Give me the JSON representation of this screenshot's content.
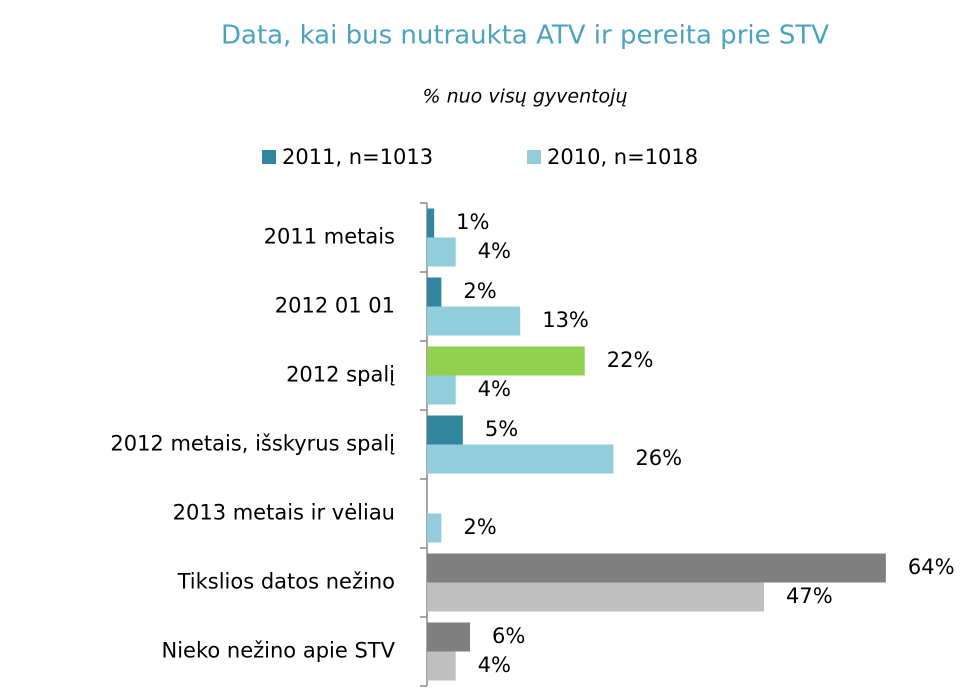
{
  "chart_data": {
    "type": "hbar",
    "title": "Data, kai bus nutraukta ATV ir pereita prie STV",
    "subtitle": "% nuo visų gyventojų",
    "categories": [
      "2011 metais",
      "2012 01 01",
      "2012 spalį",
      "2012 metais, išskyrus spalį",
      "2013 metais ir vėliau",
      "Tikslios datos nežino",
      "Nieko nežino apie STV"
    ],
    "series": [
      {
        "name": "2011, n=1013",
        "color": "#31859c",
        "colors": [
          "#31859c",
          "#31859c",
          "#92d050",
          "#31859c",
          "#31859c",
          "#7f7f7f",
          "#7f7f7f"
        ],
        "values": [
          1,
          2,
          22,
          5,
          null,
          64,
          6
        ],
        "value_labels": [
          "1%",
          "2%",
          "22%",
          "5%",
          null,
          "64%",
          "6%"
        ]
      },
      {
        "name": "2010, n=1018",
        "color": "#92cddc",
        "colors": [
          "#92cddc",
          "#92cddc",
          "#92cddc",
          "#92cddc",
          "#92cddc",
          "#bfbfbf",
          "#bfbfbf"
        ],
        "values": [
          4,
          13,
          4,
          26,
          2,
          47,
          4
        ],
        "value_labels": [
          "4%",
          "13%",
          "4%",
          "26%",
          "2%",
          "47%",
          "4%"
        ]
      }
    ]
  }
}
